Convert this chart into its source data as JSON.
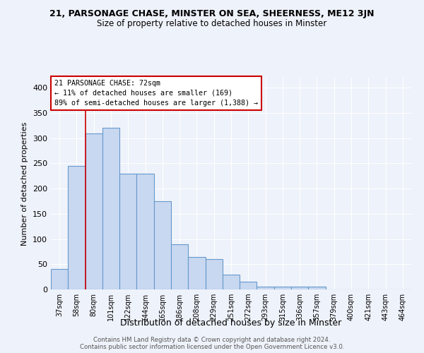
{
  "title": "21, PARSONAGE CHASE, MINSTER ON SEA, SHEERNESS, ME12 3JN",
  "subtitle": "Size of property relative to detached houses in Minster",
  "xlabel": "Distribution of detached houses by size in Minster",
  "ylabel": "Number of detached properties",
  "bar_color": "#c8d8f0",
  "bar_edge_color": "#6699cc",
  "bar_edge_width": 0.8,
  "categories": [
    "37sqm",
    "58sqm",
    "80sqm",
    "101sqm",
    "122sqm",
    "144sqm",
    "165sqm",
    "186sqm",
    "208sqm",
    "229sqm",
    "251sqm",
    "272sqm",
    "293sqm",
    "315sqm",
    "336sqm",
    "357sqm",
    "379sqm",
    "400sqm",
    "421sqm",
    "443sqm",
    "464sqm"
  ],
  "values": [
    40,
    245,
    310,
    320,
    230,
    230,
    175,
    90,
    65,
    60,
    30,
    15,
    5,
    5,
    5,
    5,
    0,
    0,
    0,
    0,
    0
  ],
  "ylim": [
    0,
    420
  ],
  "yticks": [
    0,
    50,
    100,
    150,
    200,
    250,
    300,
    350,
    400
  ],
  "marker_label_line1": "21 PARSONAGE CHASE: 72sqm",
  "marker_label_line2": "← 11% of detached houses are smaller (169)",
  "marker_label_line3": "89% of semi-detached houses are larger (1,388) →",
  "annotation_box_color": "#ffffff",
  "annotation_box_edge_color": "#cc0000",
  "marker_line_color": "#cc0000",
  "footnote1": "Contains HM Land Registry data © Crown copyright and database right 2024.",
  "footnote2": "Contains public sector information licensed under the Open Government Licence v3.0.",
  "background_color": "#eef2fa",
  "grid_color": "#ffffff",
  "marker_bar_idx": 2
}
